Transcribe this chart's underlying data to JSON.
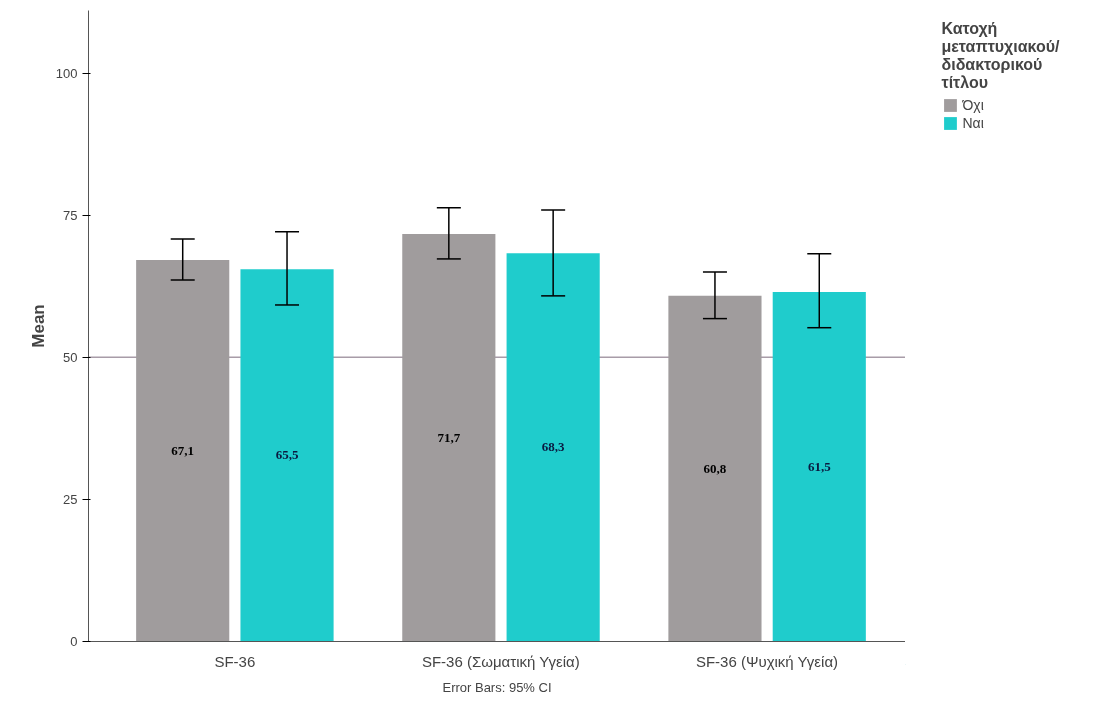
{
  "chart_data": {
    "type": "bar",
    "ylabel": "Mean",
    "legend_title": "Κατοχή μεταπτυχιακού/ διδακτορικού τίτλου",
    "categories": [
      "SF-36",
      "SF-36 (Σωματική Υγεία)",
      "SF-36 (Ψυχική Υγεία)"
    ],
    "series": [
      {
        "name": "Όχι",
        "color": "#a09c9d",
        "values": [
          67.1,
          71.7,
          60.8
        ],
        "value_labels": [
          "67,1",
          "71,7",
          "60,8"
        ],
        "errors": [
          [
            63.6,
            70.8
          ],
          [
            67.3,
            76.3
          ],
          [
            56.8,
            65.0
          ]
        ]
      },
      {
        "name": "Ναι",
        "color": "#1fcccc",
        "values": [
          65.5,
          68.3,
          61.5
        ],
        "value_labels": [
          "65,5",
          "68,3",
          "61,5"
        ],
        "errors": [
          [
            59.2,
            72.1
          ],
          [
            60.8,
            75.9
          ],
          [
            55.2,
            68.2
          ]
        ]
      }
    ],
    "ylim": [
      0,
      111
    ],
    "yticks": [
      0,
      25,
      50,
      75,
      100
    ],
    "grid": false,
    "legend": "top right",
    "ref_lines": [
      {
        "axis": "y",
        "value": 50,
        "color": "#a89ca8"
      }
    ],
    "annotations": [
      "Error Bars: 95% CI"
    ]
  }
}
